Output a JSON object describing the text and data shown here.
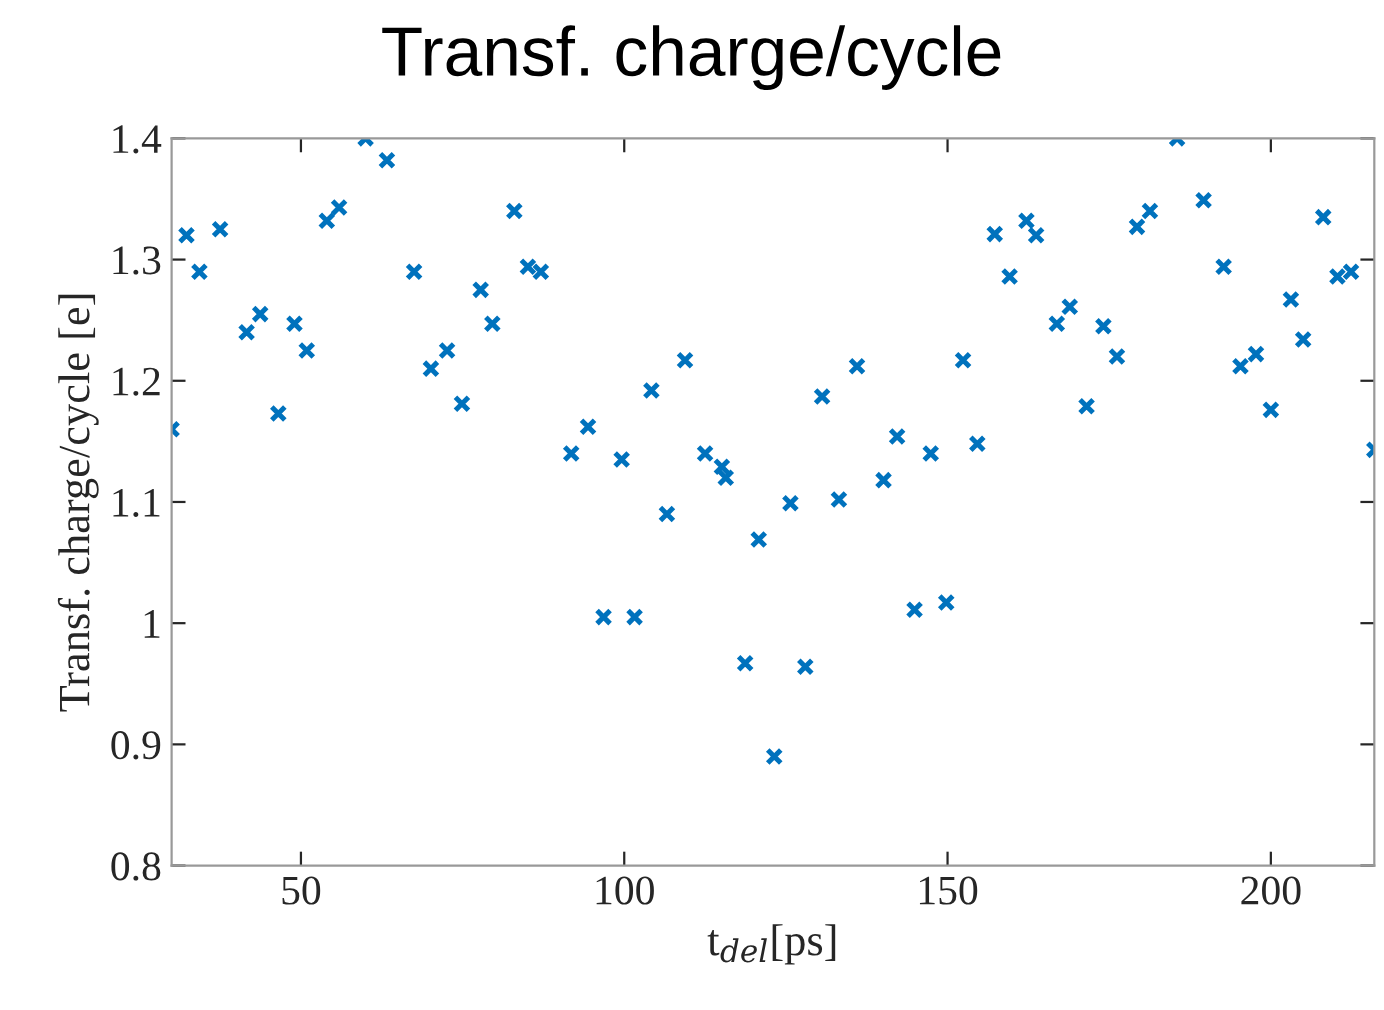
{
  "chart_data": {
    "type": "scatter",
    "title": "Transf. charge/cycle",
    "xlabel": "t$_{del}$[ps]",
    "ylabel": "Transf. charge/cycle [e]",
    "xlim": [
      30,
      216
    ],
    "ylim": [
      0.8,
      1.4
    ],
    "xticks": [
      50,
      100,
      150,
      200
    ],
    "yticks": [
      0.8,
      0.9,
      1,
      1.1,
      1.2,
      1.3,
      1.4
    ],
    "grid": false,
    "marker": "cross",
    "series": [
      {
        "color": "#0072bd",
        "x": [
          30,
          32.3,
          34.3,
          37.5,
          41.6,
          43.7,
          46.5,
          49.0,
          50.9,
          54.0,
          55.9,
          60.0,
          63.3,
          67.5,
          70.1,
          72.6,
          74.9,
          77.8,
          79.6,
          83.0,
          85.1,
          87.1,
          91.8,
          94.4,
          96.8,
          99.6,
          101.6,
          104.2,
          106.6,
          109.4,
          112.5,
          115.1,
          115.7,
          118.7,
          120.8,
          123.2,
          125.7,
          128.0,
          130.6,
          133.2,
          136.0,
          140.1,
          142.2,
          144.9,
          147.4,
          149.8,
          152.4,
          154.6,
          157.3,
          159.6,
          162.2,
          163.7,
          166.9,
          168.9,
          171.5,
          174.1,
          176.2,
          179.3,
          181.3,
          185.5,
          189.6,
          192.7,
          195.3,
          197.7,
          200.0,
          203.1,
          205.0,
          208.1,
          210.3,
          212.4,
          216
        ],
        "values": [
          1.16,
          1.32,
          1.29,
          1.325,
          1.24,
          1.255,
          1.173,
          1.247,
          1.225,
          1.332,
          1.343,
          1.4,
          1.382,
          1.29,
          1.21,
          1.225,
          1.181,
          1.275,
          1.247,
          1.34,
          1.294,
          1.29,
          1.14,
          1.162,
          1.005,
          1.135,
          1.005,
          1.192,
          1.09,
          1.217,
          1.14,
          1.129,
          1.12,
          0.967,
          1.069,
          0.89,
          1.099,
          0.964,
          1.187,
          1.102,
          1.212,
          1.118,
          1.154,
          1.011,
          1.14,
          1.017,
          1.217,
          1.148,
          1.321,
          1.286,
          1.332,
          1.32,
          1.247,
          1.261,
          1.179,
          1.245,
          1.22,
          1.327,
          1.34,
          1.4,
          1.349,
          1.294,
          1.212,
          1.222,
          1.176,
          1.267,
          1.234,
          1.335,
          1.286,
          1.29,
          1.143
        ]
      }
    ]
  }
}
